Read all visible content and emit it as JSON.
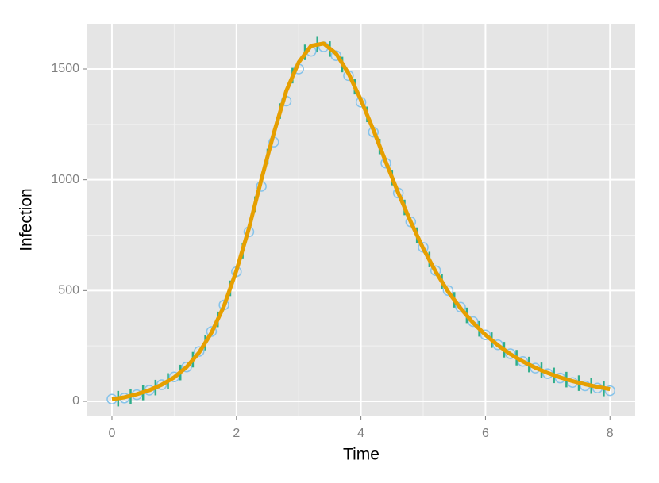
{
  "chart_data": {
    "type": "scatter",
    "x_label": "Time",
    "y_label": "Infection",
    "xlim": [
      -0.395,
      8.405
    ],
    "ylim": [
      -68,
      1704
    ],
    "xticks": [
      0,
      2,
      4,
      6,
      8
    ],
    "yticks": [
      0,
      500,
      1000,
      1500
    ],
    "grid": true,
    "points": {
      "color": "#86c3ea",
      "x": [
        0,
        0.2,
        0.4,
        0.6,
        0.8,
        1,
        1.2,
        1.4,
        1.6,
        1.8,
        2,
        2.2,
        2.4,
        2.6,
        2.8,
        3,
        3.2,
        3.4,
        3.6,
        3.8,
        4,
        4.2,
        4.4,
        4.6,
        4.8,
        5,
        5.2,
        5.4,
        5.6,
        5.8,
        6,
        6.2,
        6.4,
        6.6,
        6.8,
        7,
        7.2,
        7.4,
        7.6,
        7.8,
        8
      ],
      "values": [
        10,
        15,
        30,
        50,
        75,
        110,
        155,
        225,
        315,
        435,
        585,
        765,
        970,
        1170,
        1355,
        1500,
        1580,
        1600,
        1560,
        1470,
        1350,
        1215,
        1075,
        940,
        810,
        695,
        590,
        500,
        425,
        360,
        300,
        255,
        215,
        180,
        150,
        125,
        105,
        85,
        70,
        60,
        48
      ]
    },
    "errorbars": {
      "color": "#2fae8a",
      "x": [
        0.1,
        0.3,
        0.5,
        0.7,
        0.9,
        1.1,
        1.3,
        1.5,
        1.7,
        1.9,
        2.1,
        2.3,
        2.5,
        2.7,
        2.9,
        3.1,
        3.3,
        3.5,
        3.7,
        3.9,
        4.1,
        4.3,
        4.5,
        4.7,
        4.9,
        5.1,
        5.3,
        5.5,
        5.7,
        5.9,
        6.1,
        6.3,
        6.5,
        6.7,
        6.9,
        7.1,
        7.3,
        7.5,
        7.7,
        7.9
      ],
      "values": [
        12,
        22,
        40,
        62,
        92,
        130,
        188,
        265,
        370,
        510,
        680,
        890,
        1105,
        1310,
        1470,
        1575,
        1610,
        1590,
        1520,
        1420,
        1295,
        1150,
        1010,
        875,
        750,
        640,
        540,
        458,
        388,
        327,
        276,
        233,
        197,
        166,
        140,
        117,
        98,
        82,
        69,
        58
      ],
      "error": [
        35,
        35,
        35,
        35,
        35,
        35,
        35,
        35,
        35,
        35,
        35,
        35,
        35,
        35,
        35,
        35,
        35,
        35,
        35,
        35,
        35,
        35,
        35,
        35,
        35,
        35,
        35,
        35,
        35,
        35,
        35,
        35,
        35,
        35,
        35,
        35,
        35,
        35,
        35,
        35
      ]
    },
    "fit": {
      "color": "#e69f00",
      "x": [
        0,
        0.2,
        0.4,
        0.6,
        0.8,
        1,
        1.2,
        1.4,
        1.6,
        1.8,
        2,
        2.2,
        2.4,
        2.6,
        2.8,
        3,
        3.2,
        3.4,
        3.6,
        3.8,
        4,
        4.2,
        4.4,
        4.6,
        4.8,
        5,
        5.2,
        5.4,
        5.6,
        5.8,
        6,
        6.2,
        6.4,
        6.6,
        6.8,
        7,
        7.2,
        7.4,
        7.6,
        7.8,
        8
      ],
      "values": [
        10,
        18,
        32,
        50,
        75,
        108,
        155,
        220,
        310,
        430,
        590,
        780,
        1000,
        1210,
        1400,
        1530,
        1605,
        1615,
        1570,
        1480,
        1360,
        1225,
        1080,
        940,
        810,
        690,
        585,
        495,
        420,
        355,
        300,
        253,
        213,
        180,
        152,
        128,
        108,
        91,
        77,
        65,
        55
      ]
    }
  }
}
